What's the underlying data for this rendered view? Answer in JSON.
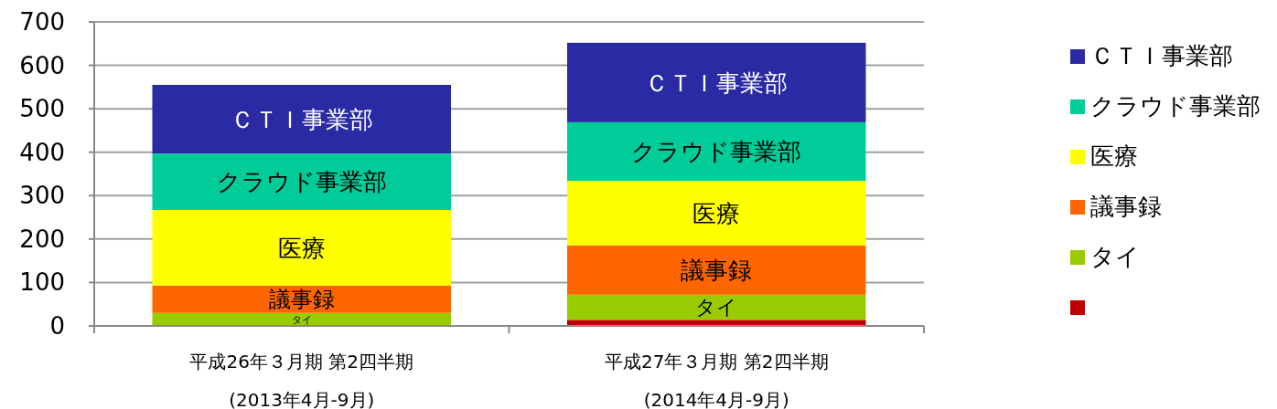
{
  "chart_data": {
    "type": "bar",
    "stacked": true,
    "categories": [
      "平成26年３月期  第2四半期\n(2013年4月-9月)",
      "平成27年３月期  第2四半期\n(2014年4月-9月)"
    ],
    "series": [
      {
        "color": "#c00000",
        "values": [
          null,
          14
        ]
      },
      {
        "name": "タイ",
        "color": "#99cc00",
        "values": [
          30,
          58
        ]
      },
      {
        "name": "議事録",
        "color": "#ff6600",
        "values": [
          63,
          113
        ]
      },
      {
        "name": "医療",
        "color": "#ffff00",
        "values": [
          174,
          149
        ]
      },
      {
        "name": "クラウド事業部",
        "color": "#00cc99",
        "values": [
          130,
          135
        ]
      },
      {
        "name": "ＣＴＩ事業部",
        "color": "#2a2aa5",
        "values": [
          158,
          183
        ]
      }
    ],
    "ylim": [
      0,
      700
    ],
    "yticks": [
      0,
      100,
      200,
      300,
      400,
      500,
      600,
      700
    ],
    "grid": "y",
    "legend": "right"
  }
}
